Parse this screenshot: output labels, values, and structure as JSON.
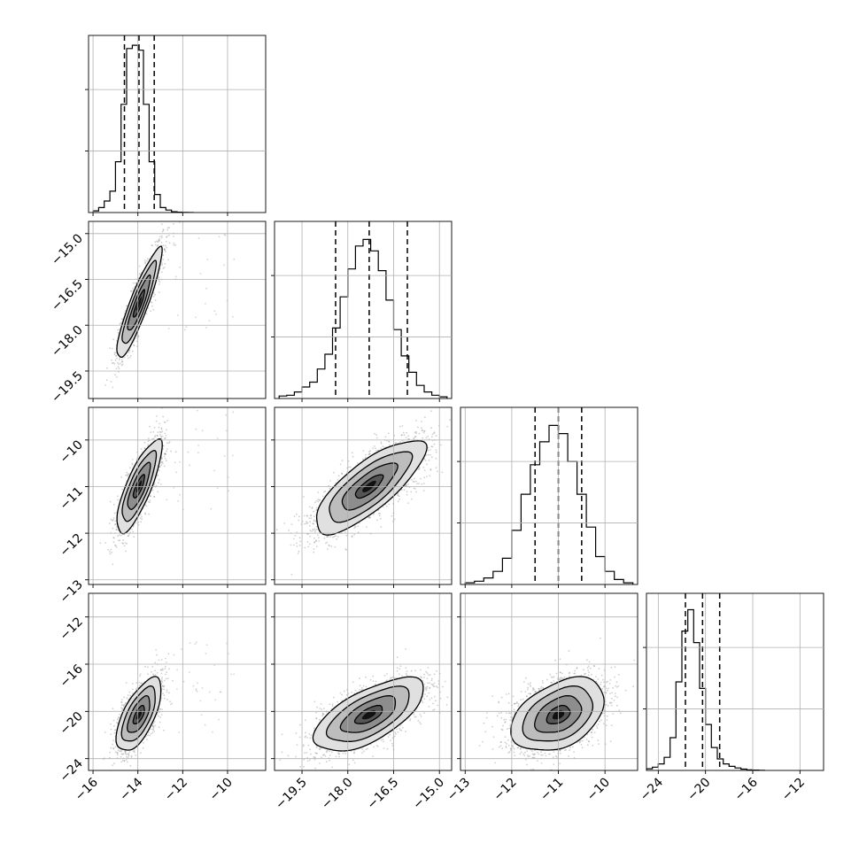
{
  "chart_data": {
    "type": "corner",
    "parameters": 4,
    "axes": {
      "p0": {
        "range": [
          -16.2,
          -8.3
        ],
        "ticks": [
          "−16",
          "−14",
          "−12",
          "−10"
        ],
        "tick_values": [
          -16,
          -14,
          -12,
          -10
        ]
      },
      "p1": {
        "range": [
          -20.4,
          -14.6
        ],
        "ticks": [
          "−19.5",
          "−18.0",
          "−16.5",
          "−15.0"
        ],
        "tick_values": [
          -19.5,
          -18.0,
          -16.5,
          -15.0
        ]
      },
      "p2": {
        "range": [
          -13.1,
          -9.3
        ],
        "ticks": [
          "−13",
          "−12",
          "−11",
          "−10"
        ],
        "tick_values": [
          -13,
          -12,
          -11,
          -10
        ]
      },
      "p3": {
        "range": [
          -25.0,
          -10.0
        ],
        "ticks": [
          "−24",
          "−20",
          "−16",
          "−12"
        ],
        "tick_values": [
          -24,
          -20,
          -16,
          -12
        ]
      }
    },
    "diagonal": [
      {
        "param": "p0",
        "bins": [
          -16.0,
          -15.75,
          -15.5,
          -15.25,
          -15.0,
          -14.75,
          -14.5,
          -14.25,
          -14.0,
          -13.75,
          -13.5,
          -13.25,
          -13.0,
          -12.75,
          -12.5,
          -12.25,
          -12.0,
          -11.75,
          -11.5
        ],
        "counts": [
          0.01,
          0.03,
          0.07,
          0.13,
          0.31,
          0.66,
          1.0,
          1.02,
          0.99,
          0.66,
          0.31,
          0.11,
          0.03,
          0.015,
          0.005,
          0.002,
          0.001,
          0.0
        ],
        "quantiles": [
          -14.6,
          -13.95,
          -13.27
        ]
      },
      {
        "param": "p1",
        "bins": [
          -20.25,
          -20.0,
          -19.75,
          -19.5,
          -19.25,
          -19.0,
          -18.75,
          -18.5,
          -18.25,
          -18.0,
          -17.75,
          -17.5,
          -17.25,
          -17.0,
          -16.75,
          -16.5,
          -16.25,
          -16.0,
          -15.75,
          -15.5,
          -15.25,
          -15.0,
          -14.75
        ],
        "counts": [
          0.015,
          0.02,
          0.04,
          0.07,
          0.1,
          0.18,
          0.27,
          0.43,
          0.62,
          0.79,
          0.93,
          0.97,
          0.9,
          0.78,
          0.6,
          0.42,
          0.26,
          0.16,
          0.08,
          0.04,
          0.02,
          0.01
        ],
        "quantiles": [
          -18.4,
          -17.3,
          -16.05
        ]
      },
      {
        "param": "p2",
        "bins": [
          -13.0,
          -12.8,
          -12.6,
          -12.4,
          -12.2,
          -12.0,
          -11.8,
          -11.6,
          -11.4,
          -11.2,
          -11.0,
          -10.8,
          -10.6,
          -10.4,
          -10.2,
          -10.0,
          -9.8,
          -9.6,
          -9.4
        ],
        "counts": [
          0.01,
          0.02,
          0.04,
          0.08,
          0.16,
          0.33,
          0.55,
          0.73,
          0.87,
          0.97,
          0.92,
          0.75,
          0.55,
          0.35,
          0.17,
          0.08,
          0.03,
          0.01
        ],
        "quantiles": [
          -11.5,
          -11.0,
          -10.5
        ]
      },
      {
        "param": "p3",
        "bins": [
          -25.0,
          -24.5,
          -24.0,
          -23.5,
          -23.0,
          -22.5,
          -22.0,
          -21.5,
          -21.0,
          -20.5,
          -20.0,
          -19.5,
          -19.0,
          -18.5,
          -18.0,
          -17.5,
          -17.0,
          -16.5,
          -16.0,
          -15.5,
          -15.0
        ],
        "counts": [
          0.01,
          0.02,
          0.04,
          0.08,
          0.2,
          0.54,
          0.85,
          0.98,
          0.78,
          0.5,
          0.28,
          0.14,
          0.07,
          0.04,
          0.025,
          0.015,
          0.008,
          0.004,
          0.002,
          0.001
        ],
        "quantiles": [
          -21.7,
          -20.25,
          -18.8
        ]
      }
    ],
    "pairs": [
      {
        "x": "p0",
        "y": "p1",
        "center": [
          -13.95,
          -17.3
        ],
        "sigma": [
          0.5,
          0.9
        ],
        "rho": 0.9,
        "scatter": 1500,
        "outliers": 40
      },
      {
        "x": "p0",
        "y": "p2",
        "center": [
          -13.95,
          -11.0
        ],
        "sigma": [
          0.5,
          0.5
        ],
        "rho": 0.8,
        "scatter": 1500,
        "outliers": 40
      },
      {
        "x": "p1",
        "y": "p2",
        "center": [
          -17.3,
          -11.0
        ],
        "sigma": [
          0.9,
          0.5
        ],
        "rho": 0.78,
        "scatter": 2500,
        "outliers": 0
      },
      {
        "x": "p0",
        "y": "p3",
        "center": [
          -13.95,
          -20.3
        ],
        "sigma": [
          0.5,
          1.55
        ],
        "rho": 0.65,
        "scatter": 1500,
        "outliers": 40
      },
      {
        "x": "p1",
        "y": "p3",
        "center": [
          -17.3,
          -20.3
        ],
        "sigma": [
          0.9,
          1.55
        ],
        "rho": 0.65,
        "scatter": 2500,
        "outliers": 0
      },
      {
        "x": "p2",
        "y": "p3",
        "center": [
          -11.0,
          -20.3
        ],
        "sigma": [
          0.5,
          1.55
        ],
        "rho": 0.4,
        "scatter": 2500,
        "outliers": 0
      }
    ],
    "contour_levels_sigma": [
      0.5,
      1.0,
      1.5,
      2.0
    ],
    "grid": true,
    "colors": {
      "line": "#000000",
      "grid": "#b0b0b0",
      "scatter": "#777777",
      "density": "#000000"
    }
  }
}
